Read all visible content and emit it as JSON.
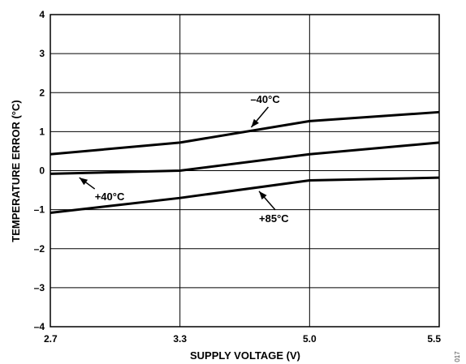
{
  "chart_data": {
    "type": "line",
    "xlabel": "SUPPLY VOLTAGE (V)",
    "ylabel": "TEMPERATURE ERROR (°C)",
    "x": [
      2.7,
      3.3,
      5.0,
      5.5
    ],
    "x_tick_labels": [
      "2.7",
      "3.3",
      "5.0",
      "5.5"
    ],
    "x_scale": "categorical-evenly-spaced",
    "ylim": [
      -4,
      4
    ],
    "y_ticks": [
      -4,
      -3,
      -2,
      -1,
      0,
      1,
      2,
      3,
      4
    ],
    "y_tick_labels": [
      "–4",
      "–3",
      "–2",
      "–1",
      "0",
      "1",
      "2",
      "3",
      "4"
    ],
    "grid": true,
    "series": [
      {
        "name": "–40°C",
        "values": [
          0.42,
          0.72,
          1.27,
          1.5
        ]
      },
      {
        "name": "+40°C",
        "values": [
          -0.08,
          0.0,
          0.42,
          0.72
        ]
      },
      {
        "name": "+85°C",
        "values": [
          -1.08,
          -0.7,
          -0.25,
          -0.18
        ]
      }
    ],
    "annotations": [
      {
        "text": "–40°C",
        "series": 0
      },
      {
        "text": "+40°C",
        "series": 1
      },
      {
        "text": "+85°C",
        "series": 2
      }
    ],
    "figure_id": "017",
    "line_color": "#000000",
    "grid_color": "#000000"
  }
}
